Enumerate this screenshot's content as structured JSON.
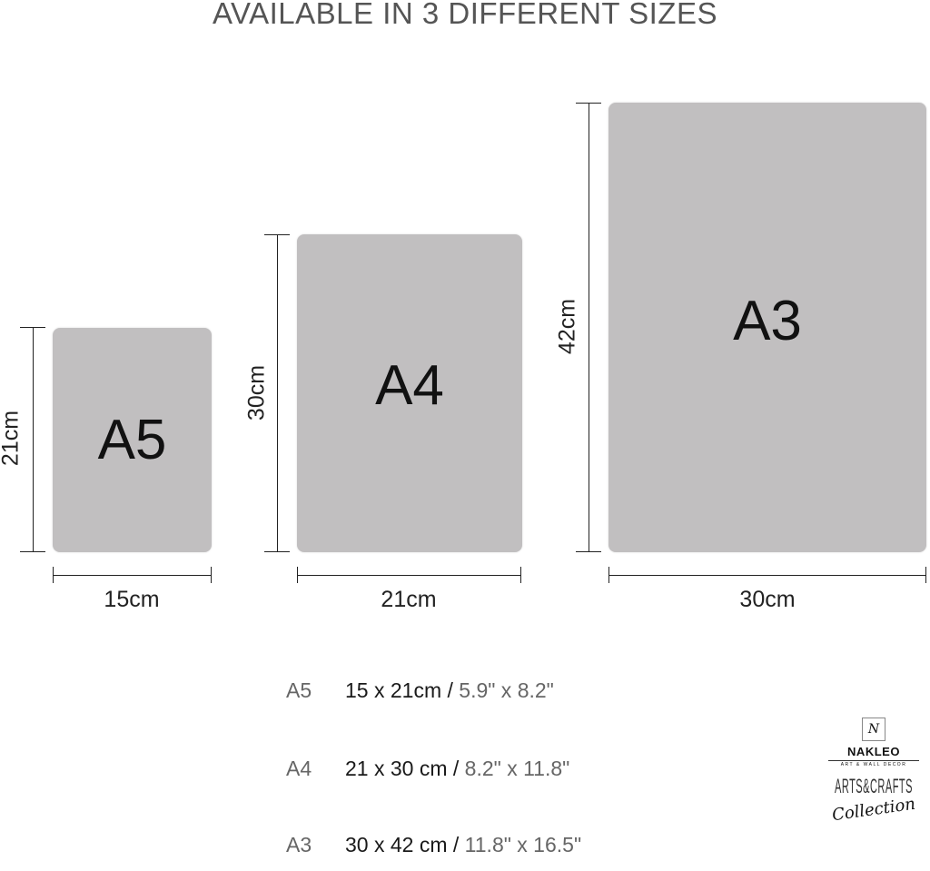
{
  "title": "AVAILABLE IN 3 DIFFERENT SIZES",
  "sheets": [
    {
      "name": "A5",
      "width_label": "15cm",
      "height_label": "21cm"
    },
    {
      "name": "A4",
      "width_label": "21cm",
      "height_label": "30cm"
    },
    {
      "name": "A3",
      "width_label": "30cm",
      "height_label": "42cm"
    }
  ],
  "sizes": [
    {
      "code": "A5",
      "cm": "15 x 21cm /",
      "inches": "5.9\" x 8.2\""
    },
    {
      "code": "A4",
      "cm": "21 x 30 cm /",
      "inches": "8.2\" x 11.8\""
    },
    {
      "code": "A3",
      "cm": "30 x 42 cm /",
      "inches": "11.8\" x 16.5\""
    }
  ],
  "logo": {
    "brand": "NAKLEO",
    "tagline": "ART & WALL DECOR",
    "collection": "ARTS&CRAFTS",
    "script": "Collection"
  },
  "colors": {
    "sheet": "#c1bfc0",
    "title": "#555555"
  }
}
